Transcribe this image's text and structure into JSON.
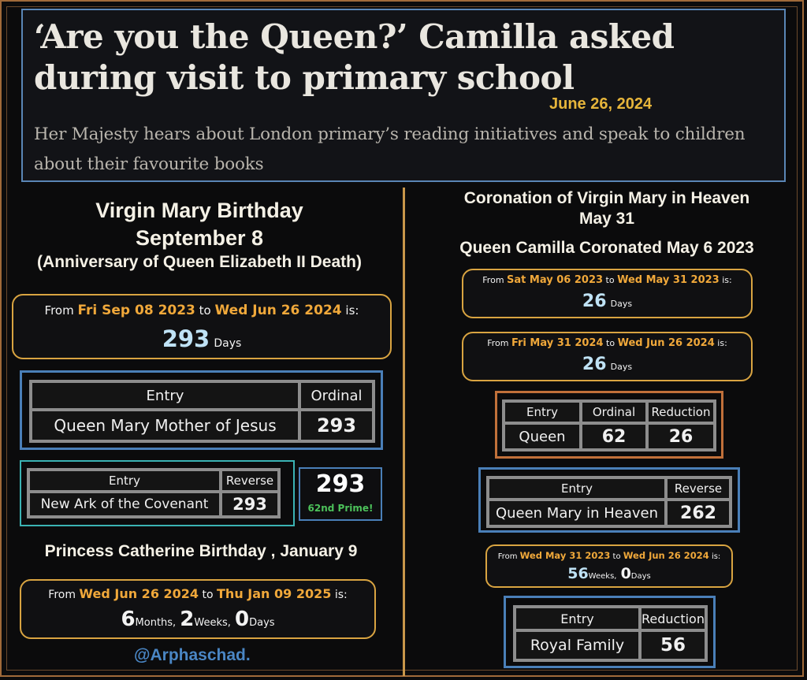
{
  "header": {
    "headline": "‘Are you the Queen?’ Camilla asked during visit to primary school",
    "date": "June 26, 2024",
    "subhead": "Her Majesty hears about London primary’s reading initiatives and speak to children about their favourite books"
  },
  "left": {
    "title_line1": "Virgin Mary Birthday",
    "title_line2": "September 8",
    "title_line3": "(Anniversary of Queen Elizabeth II Death)",
    "calc1": {
      "from_label": "From",
      "from_date": "Fri Sep 08 2023",
      "to_label": "to",
      "to_date": "Wed Jun 26 2024",
      "is_label": "is:",
      "value": "293",
      "unit": "Days"
    },
    "table1": {
      "headers": [
        "Entry",
        "Ordinal"
      ],
      "entry": "Queen Mary Mother of Jesus",
      "value": "293"
    },
    "table2": {
      "headers": [
        "Entry",
        "Reverse"
      ],
      "entry": "New Ark of the Covenant",
      "value": "293"
    },
    "prime": {
      "number": "293",
      "note": "62nd Prime!"
    },
    "cath_title": "Princess Catherine Birthday , January 9",
    "calc2": {
      "from_label": "From",
      "from_date": "Wed Jun 26 2024",
      "to_label": "to",
      "to_date": "Thu Jan 09 2025",
      "is_label": "is:",
      "months": "6",
      "months_unit": "Months,",
      "weeks": "2",
      "weeks_unit": "Weeks,",
      "days": "0",
      "days_unit": "Days"
    },
    "credit": "@Arphaschad."
  },
  "right": {
    "title_line1": "Coronation of Virgin Mary in Heaven",
    "title_line2": "May 31",
    "title_line3": "Queen Camilla Coronated May 6 2023",
    "calc1": {
      "from_label": "From",
      "from_date": "Sat May 06 2023",
      "to_label": "to",
      "to_date": "Wed May 31 2023",
      "is_label": "is:",
      "value": "26",
      "unit": "Days"
    },
    "calc2": {
      "from_label": "From",
      "from_date": "Fri May 31 2024",
      "to_label": "to",
      "to_date": "Wed Jun 26 2024",
      "is_label": "is:",
      "value": "26",
      "unit": "Days"
    },
    "table1": {
      "headers": [
        "Entry",
        "Ordinal",
        "Reduction"
      ],
      "entry": "Queen",
      "ordinal": "62",
      "reduction": "26"
    },
    "table2": {
      "headers": [
        "Entry",
        "Reverse"
      ],
      "entry": "Queen Mary in Heaven",
      "value": "262"
    },
    "calc3": {
      "from_label": "From",
      "from_date": "Wed May 31 2023",
      "to_label": "to",
      "to_date": "Wed Jun 26 2024",
      "is_label": "is:",
      "weeks": "56",
      "weeks_unit": "Weeks,",
      "days": "0",
      "days_unit": "Days"
    },
    "table3": {
      "headers": [
        "Entry",
        "Reduction"
      ],
      "entry": "Royal Family",
      "value": "56"
    }
  },
  "colors": {
    "gold": "#d9a441",
    "orange": "#f0a83a",
    "blue_border": "#5a86b5",
    "green": "#4cc15a",
    "light_blue": "#86b3e8"
  }
}
